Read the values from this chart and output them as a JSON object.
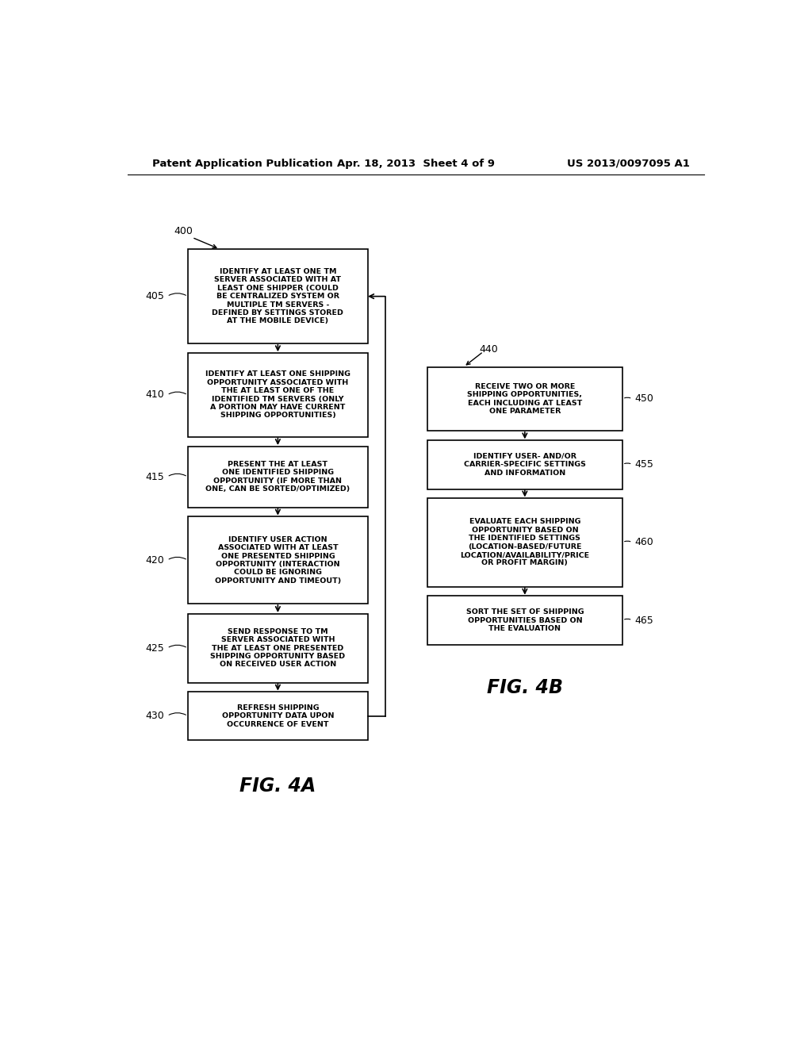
{
  "title_left": "Patent Application Publication",
  "title_center": "Apr. 18, 2013  Sheet 4 of 9",
  "title_right": "US 2013/0097095 A1",
  "fig4a_label": "FIG. 4A",
  "fig4b_label": "FIG. 4B",
  "fig4a_start_label": "400",
  "fig4b_start_label": "440",
  "left_boxes": [
    {
      "label": "405",
      "text": "IDENTIFY AT LEAST ONE TM\nSERVER ASSOCIATED WITH AT\nLEAST ONE SHIPPER (COULD\nBE CENTRALIZED SYSTEM OR\nMULTIPLE TM SERVERS -\nDEFINED BY SETTINGS STORED\nAT THE MOBILE DEVICE)"
    },
    {
      "label": "410",
      "text": "IDENTIFY AT LEAST ONE SHIPPING\nOPPORTUNITY ASSOCIATED WITH\nTHE AT LEAST ONE OF THE\nIDENTIFIED TM SERVERS (ONLY\nA PORTION MAY HAVE CURRENT\nSHIPPING OPPORTUNITIES)"
    },
    {
      "label": "415",
      "text": "PRESENT THE AT LEAST\nONE IDENTIFIED SHIPPING\nOPPORTUNITY (IF MORE THAN\nONE, CAN BE SORTED/OPTIMIZED)"
    },
    {
      "label": "420",
      "text": "IDENTIFY USER ACTION\nASSOCIATED WITH AT LEAST\nONE PRESENTED SHIPPING\nOPPORTUNITY (INTERACTION\nCOULD BE IGNORING\nOPPORTUNITY AND TIMEOUT)"
    },
    {
      "label": "425",
      "text": "SEND RESPONSE TO TM\nSERVER ASSOCIATED WITH\nTHE AT LEAST ONE PRESENTED\nSHIPPING OPPORTUNITY BASED\nON RECEIVED USER ACTION"
    },
    {
      "label": "430",
      "text": "REFRESH SHIPPING\nOPPORTUNITY DATA UPON\nOCCURRENCE OF EVENT"
    }
  ],
  "right_boxes": [
    {
      "label": "450",
      "text": "RECEIVE TWO OR MORE\nSHIPPING OPPORTUNITIES,\nEACH INCLUDING AT LEAST\nONE PARAMETER"
    },
    {
      "label": "455",
      "text": "IDENTIFY USER- AND/OR\nCARRIER-SPECIFIC SETTINGS\nAND INFORMATION"
    },
    {
      "label": "460",
      "text": "EVALUATE EACH SHIPPING\nOPPORTUNITY BASED ON\nTHE IDENTIFIED SETTINGS\n(LOCATION-BASED/FUTURE\nLOCATION/AVAILABILITY/PRICE\nOR PROFIT MARGIN)"
    },
    {
      "label": "465",
      "text": "SORT THE SET OF SHIPPING\nOPPORTUNITIES BASED ON\nTHE EVALUATION"
    }
  ],
  "bg_color": "#ffffff",
  "box_edge_color": "#000000",
  "text_color": "#000000"
}
